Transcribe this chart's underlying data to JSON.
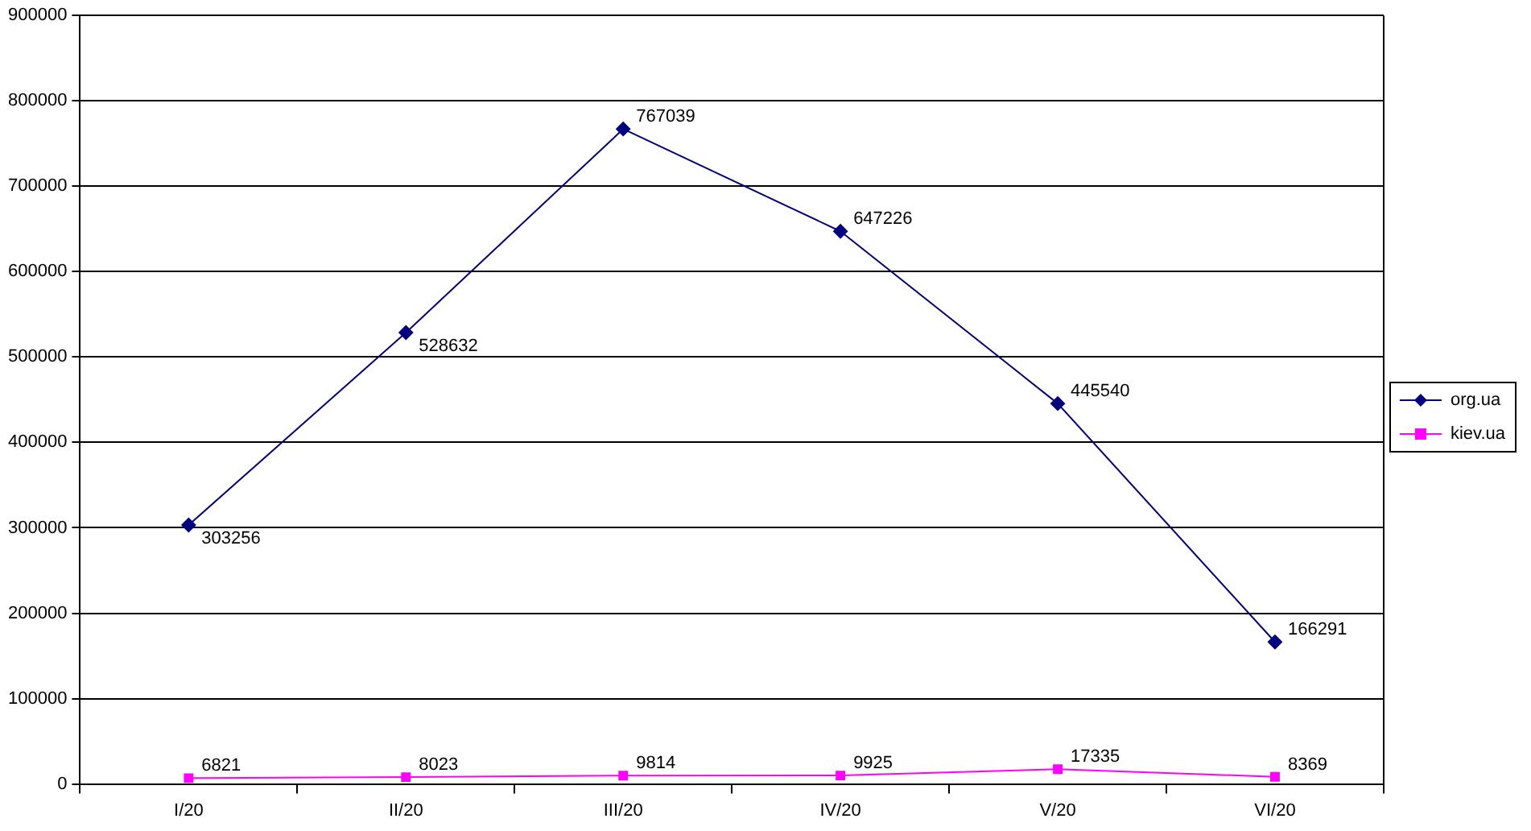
{
  "chart_data": {
    "type": "line",
    "categories": [
      "I/20",
      "II/20",
      "III/20",
      "IV/20",
      "V/20",
      "VI/20"
    ],
    "series": [
      {
        "name": "org.ua",
        "color": "#000080",
        "marker": "diamond",
        "values": [
          303256,
          528632,
          767039,
          647226,
          445540,
          166291
        ]
      },
      {
        "name": "kiev.ua",
        "color": "#ff00ff",
        "marker": "square",
        "values": [
          6821,
          8023,
          9814,
          9925,
          17335,
          8369
        ]
      }
    ],
    "ylim": [
      0,
      900000
    ],
    "yticks": [
      0,
      100000,
      200000,
      300000,
      400000,
      500000,
      600000,
      700000,
      800000,
      900000
    ],
    "grid": "y",
    "legend": "right",
    "data_labels": true,
    "line_style": "solid"
  }
}
